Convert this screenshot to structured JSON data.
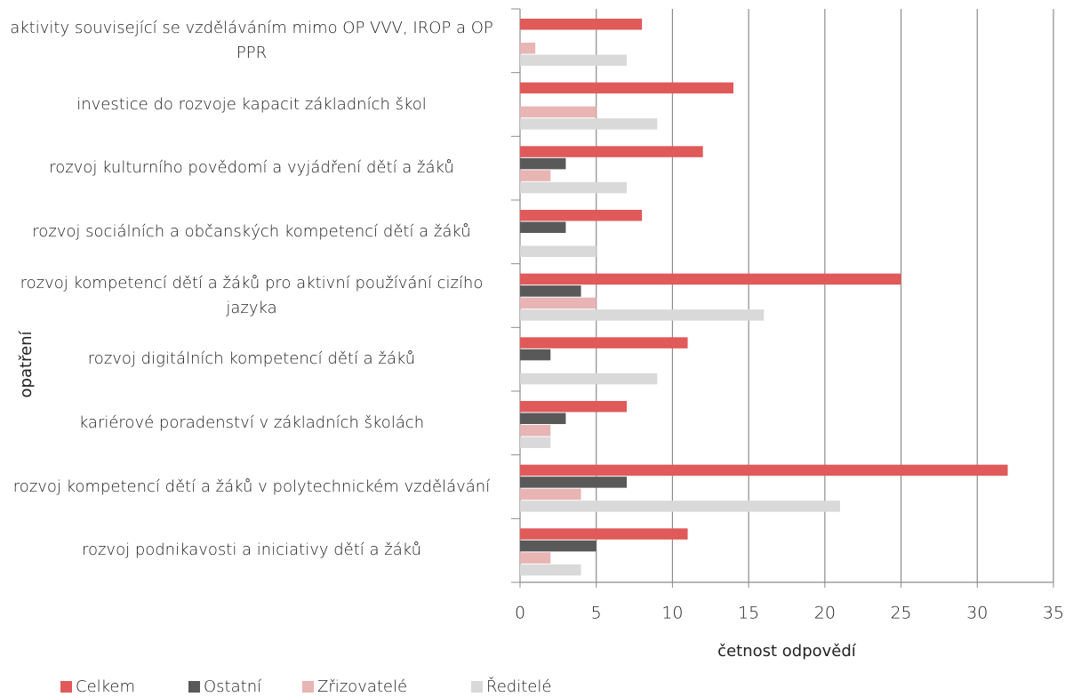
{
  "chart_data": {
    "type": "bar",
    "orientation": "horizontal",
    "categories": [
      "aktivity související se vzděláváním mimo OP VVV, IROP a OP PPR",
      "investice do rozvoje kapacit základních škol",
      "rozvoj kulturního povědomí a vyjádření dětí a žáků",
      "rozvoj sociálních a občanských kompetencí dětí a žáků",
      "rozvoj kompetencí dětí a žáků pro aktivní používání cizího jazyka",
      "rozvoj digitálních kompetencí dětí a žáků",
      "kariérové poradenství v základních školách",
      "rozvoj kompetencí dětí a žáků v polytechnickém vzdělávání",
      "rozvoj podnikavosti a iniciativy dětí a žáků"
    ],
    "series": [
      {
        "name": "Celkem",
        "color": "#e05a5a",
        "values": [
          8,
          14,
          12,
          8,
          25,
          11,
          7,
          32,
          11
        ]
      },
      {
        "name": "Ostatní",
        "color": "#595959",
        "values": [
          0,
          0,
          3,
          3,
          4,
          2,
          3,
          7,
          5
        ]
      },
      {
        "name": "Zřizovatelé",
        "color": "#e8b4b4",
        "values": [
          1,
          5,
          2,
          0,
          5,
          0,
          2,
          4,
          2
        ]
      },
      {
        "name": "Ředitelé",
        "color": "#d9d9d9",
        "values": [
          7,
          9,
          7,
          5,
          16,
          9,
          2,
          21,
          4
        ]
      }
    ],
    "xlabel": "četnost odpovědí",
    "ylabel": "opatření",
    "xlim": [
      0,
      35
    ],
    "xticks": [
      0,
      5,
      10,
      15,
      20,
      25,
      30,
      35
    ],
    "grid": true,
    "legend": "bottom"
  }
}
